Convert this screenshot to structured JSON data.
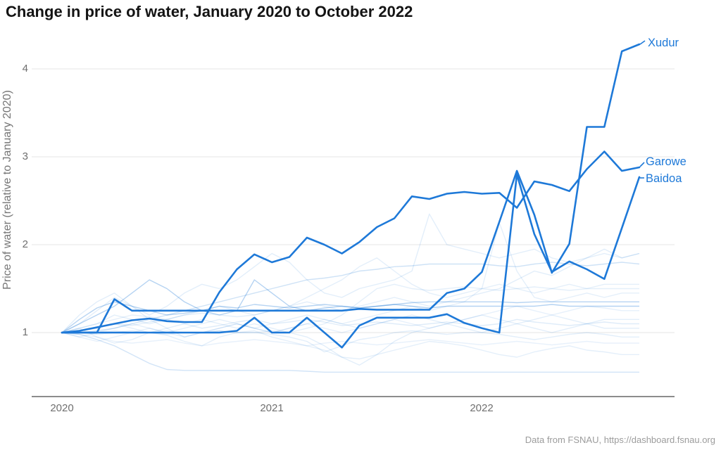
{
  "title": "Change in price of water, January 2020 to October 2022",
  "footer": "Data from FSNAU, https://dashboard.fsnau.org",
  "colors": {
    "highlight_blue": "#1e79d8",
    "background_blue": "#1e79d8",
    "grid": "#e4e4e4",
    "axis": "#8c8c8c",
    "tick_text": "#6f6f6f",
    "title_text": "#141414",
    "footer_text": "#9c9c9c"
  },
  "chart_data": {
    "type": "line",
    "title": "Change in price of water, January 2020 to October 2022",
    "xlabel": "",
    "ylabel": "Price of water (relative to January 2020)",
    "x_domain": [
      "Jan 2020",
      "Oct 2022"
    ],
    "months": 34,
    "x_tick_labels": [
      "2020",
      "2021",
      "2022"
    ],
    "x_tick_month_index": [
      0,
      12,
      24
    ],
    "y_ticks": [
      1,
      2,
      3,
      4
    ],
    "y_tick_labels": [
      "1",
      "2",
      "3",
      "4"
    ],
    "ylim": [
      0.45,
      4.45
    ],
    "grid": "horizontal-only",
    "legend_position": "end-of-line-labels",
    "series": [
      {
        "name": "Xudur",
        "values": [
          1,
          1,
          1,
          1.38,
          1.25,
          1.25,
          1.25,
          1.25,
          1.25,
          1.25,
          1.25,
          1.25,
          1.25,
          1.25,
          1.25,
          1.25,
          1.25,
          1.27,
          1.26,
          1.26,
          1.26,
          1.26,
          1.45,
          1.5,
          1.69,
          2.26,
          2.84,
          2.34,
          1.68,
          2.01,
          3.34,
          3.34,
          4.2,
          4.28
        ]
      },
      {
        "name": "Garowe",
        "values": [
          1,
          1.02,
          1.06,
          1.1,
          1.14,
          1.16,
          1.13,
          1.12,
          1.12,
          1.46,
          1.72,
          1.89,
          1.8,
          1.86,
          2.08,
          2,
          1.9,
          2.03,
          2.2,
          2.3,
          2.55,
          2.52,
          2.58,
          2.6,
          2.58,
          2.59,
          2.42,
          2.72,
          2.68,
          2.61,
          2.86,
          3.06,
          2.84,
          2.88
        ]
      },
      {
        "name": "Baidoa",
        "values": [
          1,
          1,
          1,
          1,
          1,
          1,
          1,
          1,
          1,
          1,
          1.02,
          1.17,
          1,
          1,
          1.17,
          1,
          0.83,
          1.08,
          1.17,
          1.17,
          1.17,
          1.17,
          1.21,
          1.11,
          1.05,
          1,
          2.8,
          2.12,
          1.69,
          1.81,
          1.72,
          1.61,
          2.19,
          2.77
        ]
      }
    ],
    "background_series": [
      {
        "opacity": 0.2,
        "values": [
          1,
          0.98,
          0.92,
          0.85,
          0.75,
          0.65,
          0.58,
          0.57,
          0.57,
          0.57,
          0.57,
          0.57,
          0.57,
          0.57,
          0.56,
          0.55,
          0.55,
          0.55,
          0.55,
          0.55,
          0.55,
          0.55,
          0.55,
          0.55,
          0.55,
          0.55,
          0.55,
          0.55,
          0.55,
          0.55,
          0.55,
          0.55,
          0.55,
          0.55
        ]
      },
      {
        "opacity": 0.12,
        "values": [
          1,
          1.05,
          0.95,
          0.88,
          0.92,
          1,
          0.97,
          0.9,
          0.85,
          0.95,
          1,
          1.02,
          0.95,
          0.9,
          0.85,
          0.8,
          0.72,
          0.7,
          0.75,
          0.8,
          0.85,
          0.9,
          0.88,
          0.85,
          0.8,
          0.75,
          0.72,
          0.78,
          0.82,
          0.85,
          0.8,
          0.78,
          0.75,
          0.75
        ]
      },
      {
        "opacity": 0.14,
        "values": [
          1,
          1.02,
          1.05,
          1.1,
          1.08,
          1.12,
          1.15,
          1.1,
          1.05,
          1.08,
          1.12,
          1.15,
          1.1,
          1.12,
          1.15,
          1.12,
          1.08,
          1.1,
          1.12,
          1.1,
          1.08,
          1.1,
          1.12,
          1.1,
          1.08,
          1.1,
          1.15,
          1.12,
          1.1,
          1.08,
          1.1,
          1.12,
          1.1,
          1.1
        ]
      },
      {
        "opacity": 0.32,
        "values": [
          1,
          1.15,
          1.28,
          1.35,
          1.3,
          1.25,
          1.2,
          1.22,
          1.25,
          1.3,
          1.28,
          1.32,
          1.3,
          1.28,
          1.3,
          1.32,
          1.3,
          1.28,
          1.3,
          1.32,
          1.34,
          1.35,
          1.35,
          1.35,
          1.35,
          1.35,
          1.34,
          1.35,
          1.35,
          1.35,
          1.35,
          1.35,
          1.35,
          1.35
        ]
      },
      {
        "opacity": 0.13,
        "values": [
          1,
          1.1,
          1.25,
          1.4,
          1.3,
          1.2,
          1.3,
          1.45,
          1.55,
          1.5,
          1.6,
          1.75,
          1.9,
          1.8,
          1.6,
          1.45,
          1.4,
          1.5,
          1.55,
          1.6,
          1.7,
          2.35,
          2,
          1.95,
          1.9,
          1.85,
          1.9,
          1.95,
          1.85,
          1.8,
          1.85,
          1.9,
          1.85,
          1.9
        ]
      },
      {
        "opacity": 0.22,
        "values": [
          1,
          1,
          1.02,
          1.05,
          1.1,
          1.15,
          1.2,
          1.25,
          1.3,
          1.35,
          1.4,
          1.45,
          1.5,
          1.55,
          1.6,
          1.62,
          1.65,
          1.7,
          1.72,
          1.75,
          1.76,
          1.78,
          1.78,
          1.78,
          1.78,
          1.76,
          1.75,
          1.78,
          1.8,
          1.78,
          1.76,
          1.78,
          1.8,
          1.78
        ]
      },
      {
        "opacity": 0.12,
        "values": [
          1,
          0.95,
          1,
          1.05,
          1.1,
          1.05,
          1,
          1.05,
          1.1,
          1.15,
          1.1,
          1.05,
          1.1,
          1.15,
          1.2,
          1.15,
          1.1,
          1.15,
          1.2,
          1.25,
          1.3,
          1.25,
          1.3,
          1.35,
          1.5,
          2.25,
          1.7,
          1.4,
          1.35,
          1.4,
          1.45,
          1.4,
          1.45,
          1.45
        ]
      },
      {
        "opacity": 0.13,
        "values": [
          1,
          1,
          0.98,
          1,
          1.02,
          1,
          0.98,
          1,
          1,
          1.02,
          1,
          1,
          0.98,
          0.95,
          0.9,
          0.78,
          0.85,
          0.92,
          0.95,
          1,
          1.02,
          1,
          0.98,
          1,
          1,
          0.98,
          0.95,
          0.92,
          0.95,
          0.98,
          1,
          0.98,
          0.95,
          0.95
        ]
      },
      {
        "opacity": 0.33,
        "values": [
          1,
          1.1,
          1.2,
          1.3,
          1.45,
          1.6,
          1.5,
          1.35,
          1.25,
          1.2,
          1.25,
          1.6,
          1.45,
          1.3,
          1.25,
          1.28,
          1.3,
          1.28,
          1.3,
          1.32,
          1.3,
          1.28,
          1.3,
          1.3,
          1.3,
          1.3,
          1.3,
          1.3,
          1.32,
          1.3,
          1.3,
          1.3,
          1.3,
          1.3
        ]
      },
      {
        "opacity": 0.1,
        "values": [
          1,
          0.98,
          0.95,
          0.9,
          0.88,
          0.9,
          0.92,
          0.88,
          0.85,
          0.88,
          0.9,
          0.92,
          0.9,
          0.88,
          0.85,
          0.88,
          0.9,
          0.88,
          0.86,
          0.88,
          0.9,
          0.92,
          0.9,
          0.88,
          0.86,
          0.88,
          0.9,
          0.88,
          0.86,
          0.88,
          0.9,
          0.88,
          0.88,
          0.88
        ]
      },
      {
        "opacity": 0.13,
        "values": [
          1,
          1.05,
          1.1,
          1.2,
          1.15,
          1.1,
          1.15,
          1.2,
          1.25,
          1.3,
          1.25,
          1.2,
          1.25,
          1.3,
          1.35,
          1.3,
          1.25,
          1.3,
          1.35,
          1.4,
          1.35,
          1.3,
          1.35,
          1.4,
          1.45,
          1.5,
          1.6,
          1.7,
          1.65,
          1.75,
          1.85,
          1.95,
          1.85,
          1.9
        ]
      },
      {
        "opacity": 0.12,
        "values": [
          1,
          1,
          1,
          1.02,
          1,
          1,
          1.02,
          1,
          1,
          1.02,
          1,
          1,
          1.02,
          1,
          1.05,
          1.1,
          1.2,
          1.35,
          1.5,
          1.55,
          1.5,
          1.48,
          1.5,
          1.52,
          1.5,
          1.48,
          1.5,
          1.52,
          1.5,
          1.48,
          1.5,
          1.5,
          1.5,
          1.5
        ]
      },
      {
        "opacity": 0.13,
        "values": [
          1,
          1.02,
          1.05,
          1.1,
          1.05,
          1,
          1.05,
          1.1,
          1.15,
          1.1,
          1.05,
          1.1,
          1.05,
          1,
          0.95,
          0.85,
          0.72,
          0.63,
          0.75,
          0.9,
          1,
          1.05,
          1.1,
          1.05,
          1,
          1.05,
          1.1,
          1.05,
          1,
          1.05,
          1.1,
          1.05,
          1.05,
          1.05
        ]
      },
      {
        "opacity": 0.13,
        "values": [
          1,
          1.2,
          1.35,
          1.45,
          1.3,
          1.15,
          1.05,
          0.95,
          1,
          1.05,
          1.1,
          1.05,
          1,
          1.05,
          1.1,
          1.15,
          1.1,
          1.05,
          1.1,
          1.15,
          1.2,
          1.15,
          1.1,
          1.15,
          1.2,
          1.15,
          1.1,
          1.15,
          1.2,
          1.15,
          1.1,
          1.15,
          1.15,
          1.15
        ]
      },
      {
        "opacity": 0.12,
        "values": [
          1,
          1.05,
          1.1,
          1.15,
          1.2,
          1.18,
          1.15,
          1.2,
          1.22,
          1.2,
          1.18,
          1.2,
          1.25,
          1.3,
          1.4,
          1.5,
          1.6,
          1.75,
          1.85,
          1.7,
          1.55,
          1.45,
          1.4,
          1.45,
          1.5,
          1.55,
          1.5,
          1.45,
          1.5,
          1.55,
          1.5,
          1.55,
          1.55,
          1.55
        ]
      },
      {
        "opacity": 0.11,
        "values": [
          1,
          0.95,
          0.9,
          0.95,
          1,
          1.05,
          1,
          0.95,
          1,
          1.05,
          1.1,
          1.05,
          1,
          1.05,
          1.1,
          1.05,
          1,
          1.05,
          1.1,
          1.15,
          1.1,
          1.05,
          1.1,
          1.15,
          1.2,
          1.25,
          1.3,
          1.25,
          1.2,
          1.25,
          1.3,
          1.28,
          1.25,
          1.25
        ]
      }
    ]
  }
}
